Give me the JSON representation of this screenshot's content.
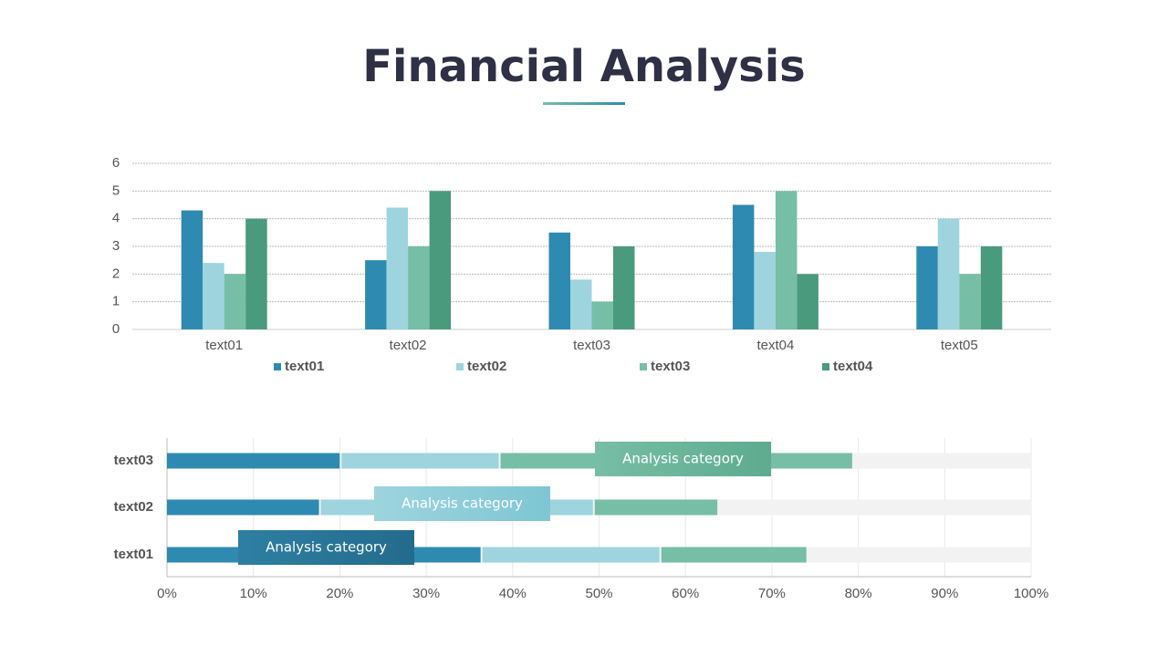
{
  "title": "Financial Analysis",
  "chart_data": [
    {
      "type": "bar",
      "categories": [
        "text01",
        "text02",
        "text03",
        "text04",
        "text05"
      ],
      "series": [
        {
          "name": "text01",
          "color": "#2e8ab0",
          "values": [
            4.3,
            2.5,
            3.5,
            4.5,
            3
          ]
        },
        {
          "name": "text02",
          "color": "#9dd4de",
          "values": [
            2.4,
            4.4,
            1.8,
            2.8,
            4
          ]
        },
        {
          "name": "text03",
          "color": "#76bea5",
          "values": [
            2,
            3,
            1,
            5,
            2
          ]
        },
        {
          "name": "text04",
          "color": "#4a9a7e",
          "values": [
            4,
            5,
            3,
            2,
            3
          ]
        }
      ],
      "ylim": [
        0,
        6
      ],
      "yticks": [
        0,
        1,
        2,
        3,
        4,
        5,
        6
      ],
      "grid": true,
      "legend": "bottom"
    },
    {
      "type": "stacked-barh",
      "categories": [
        "text01",
        "text02",
        "text03"
      ],
      "series": [
        {
          "color": "#2e8ab0",
          "values": [
            36.5,
            17.8,
            20.2
          ]
        },
        {
          "color": "#9dd4de",
          "values": [
            20.7,
            31.7,
            18.4
          ]
        },
        {
          "color": "#76bea5",
          "values": [
            17,
            14.4,
            40.9
          ]
        }
      ],
      "xlim": [
        0,
        100
      ],
      "xticks": [
        {
          "value": 0,
          "label": "0%"
        },
        {
          "value": 10,
          "label": "10%"
        },
        {
          "value": 20,
          "label": "20%"
        },
        {
          "value": 30,
          "label": "30%"
        },
        {
          "value": 40,
          "label": "40%"
        },
        {
          "value": 50,
          "label": "50%"
        },
        {
          "value": 60,
          "label": "60%"
        },
        {
          "value": 70,
          "label": "70%"
        },
        {
          "value": 80,
          "label": "80%"
        },
        {
          "value": 90,
          "label": "90%"
        },
        {
          "value": 100,
          "label": "100%"
        }
      ],
      "grid": true,
      "annotations": [
        "Analysis category",
        "Analysis category",
        "Analysis category"
      ]
    }
  ]
}
